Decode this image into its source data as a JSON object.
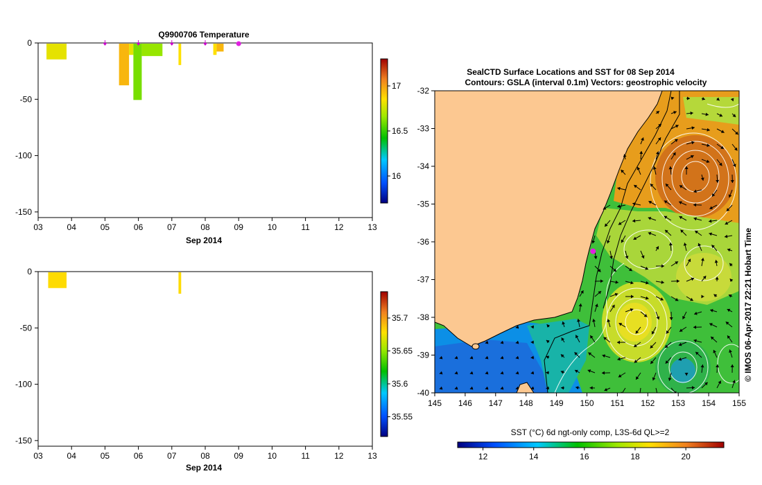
{
  "chart_data": [
    {
      "type": "bar",
      "title": "Q9900706  Temperature",
      "xlabel": "Sep 2014",
      "x_ticks": [
        "03",
        "04",
        "05",
        "06",
        "07",
        "08",
        "09",
        "10",
        "11",
        "12",
        "13"
      ],
      "y_ticks": [
        "0",
        "-50",
        "-100",
        "-150"
      ],
      "ylim": [
        -155,
        0
      ],
      "xlim": [
        3,
        13
      ],
      "profile_markers_day": [
        5,
        6,
        7,
        8
      ],
      "latest_marker_day": 9,
      "colorbar": {
        "ticks": [
          "17",
          "16.5",
          "16"
        ],
        "range": [
          15.7,
          17.3
        ]
      },
      "profiles": [
        {
          "x0": 3.25,
          "x1": 3.85,
          "depth": 14,
          "value": 16.8
        },
        {
          "x0": 5.42,
          "x1": 5.72,
          "depth": 37,
          "value": 16.95
        },
        {
          "x0": 5.72,
          "x1": 5.85,
          "depth": 10,
          "value": 16.8
        },
        {
          "x0": 5.85,
          "x1": 6.1,
          "depth": 50,
          "value": 16.6
        },
        {
          "x0": 6.1,
          "x1": 6.72,
          "depth": 11,
          "value": 16.65
        },
        {
          "x0": 7.2,
          "x1": 7.28,
          "depth": 19,
          "value": 16.85
        },
        {
          "x0": 8.24,
          "x1": 8.34,
          "depth": 10,
          "value": 16.85
        },
        {
          "x0": 8.34,
          "x1": 8.55,
          "depth": 7,
          "value": 16.95
        }
      ]
    },
    {
      "type": "bar",
      "title": "",
      "xlabel": "Sep 2014",
      "x_ticks": [
        "03",
        "04",
        "05",
        "06",
        "07",
        "08",
        "09",
        "10",
        "11",
        "12",
        "13"
      ],
      "y_ticks": [
        "0",
        "-50",
        "-100",
        "-150"
      ],
      "ylim": [
        -155,
        0
      ],
      "xlim": [
        3,
        13
      ],
      "colorbar": {
        "ticks": [
          "35.7",
          "35.65",
          "35.6",
          "35.55"
        ],
        "range": [
          35.52,
          35.74
        ]
      },
      "profiles": [
        {
          "x0": 3.3,
          "x1": 3.85,
          "depth": 14,
          "value": 35.68
        },
        {
          "x0": 7.2,
          "x1": 7.28,
          "depth": 19,
          "value": 35.68
        }
      ]
    },
    {
      "type": "heatmap",
      "title": "SealCTD Surface Locations and SST for 08 Sep 2014",
      "subtitle": "Contours: GSLA (interval 0.1m) Vectors: geostrophic velocity",
      "x_ticks": [
        "145",
        "146",
        "147",
        "148",
        "149",
        "150",
        "151",
        "152",
        "153",
        "154",
        "155"
      ],
      "y_ticks": [
        "-32",
        "-33",
        "-34",
        "-35",
        "-36",
        "-37",
        "-38",
        "-39",
        "-40"
      ],
      "xlim": [
        145,
        155
      ],
      "ylim": [
        -40,
        -32
      ],
      "seal_location": {
        "lon": 150.2,
        "lat": -36.25
      },
      "side_credit": "© IMOS 06-Apr-2017 22:21 Hobart Time",
      "colorbar": {
        "label": "SST (°C) 6d ngt-only comp, L3S-6d QL>=2",
        "ticks": [
          "12",
          "14",
          "16",
          "18",
          "20"
        ],
        "range": [
          11,
          21.5
        ]
      }
    }
  ]
}
